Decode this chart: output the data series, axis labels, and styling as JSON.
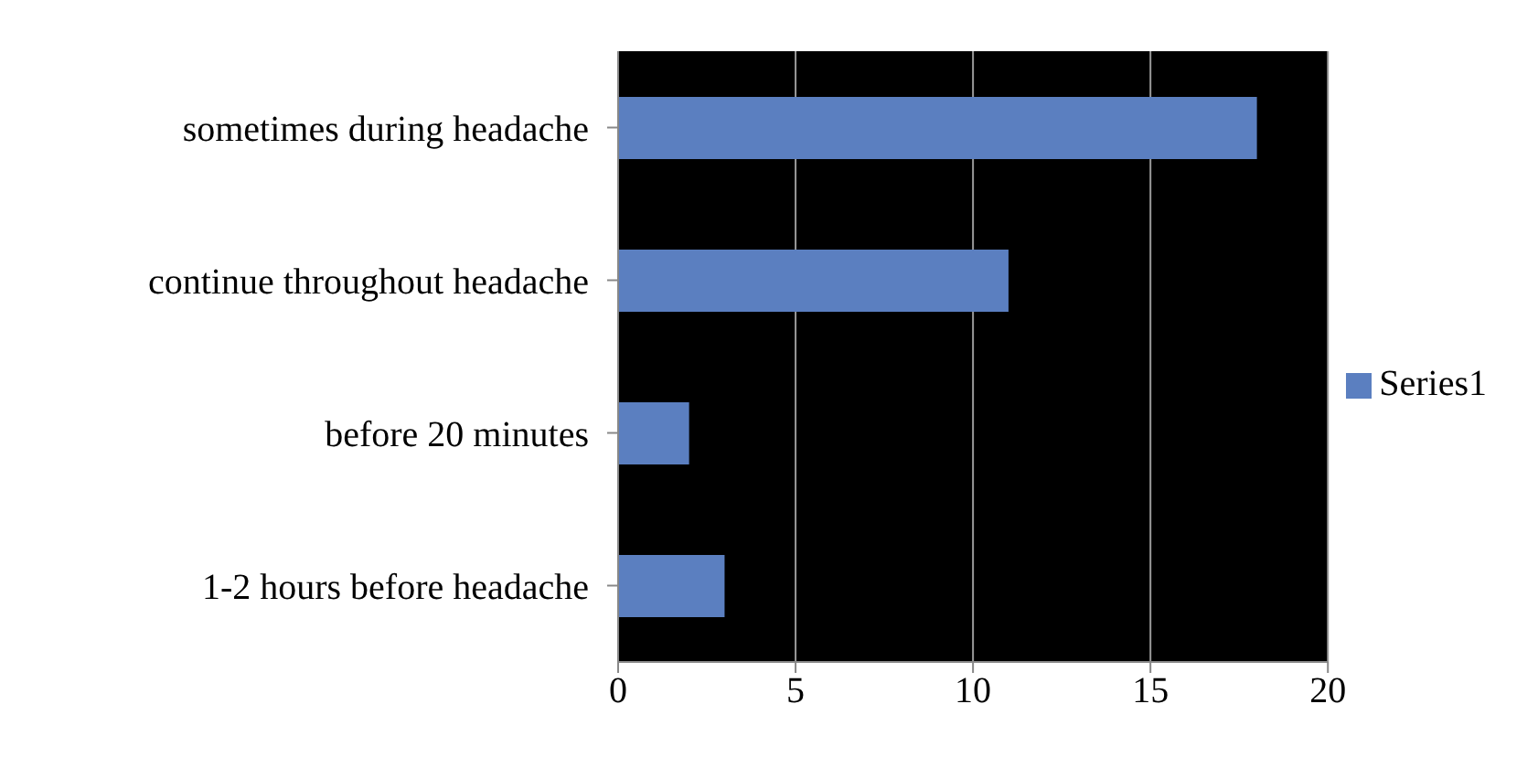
{
  "chart_data": {
    "type": "bar",
    "orientation": "horizontal",
    "categories": [
      "sometimes during headache",
      "continue throughout headache",
      "before 20 minutes",
      "1-2 hours before headache"
    ],
    "series": [
      {
        "name": "Series1",
        "color": "#5b7fc0",
        "values": [
          18,
          11,
          2,
          3
        ]
      }
    ],
    "xlim": [
      0,
      20
    ],
    "xticks": [
      0,
      5,
      10,
      15,
      20
    ],
    "grid": "x",
    "legend": "right"
  }
}
